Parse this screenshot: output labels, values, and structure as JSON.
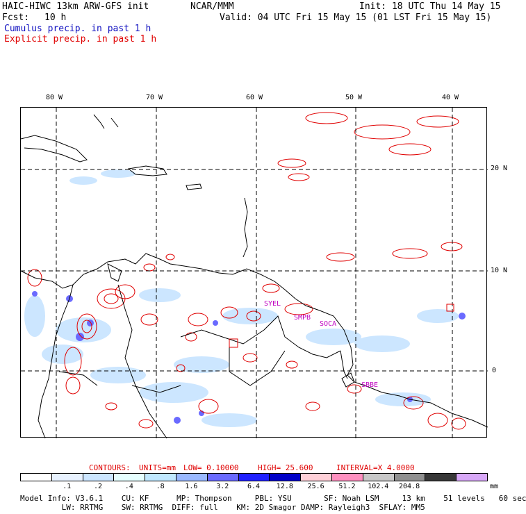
{
  "header": {
    "title": "HAIC-HIWC 13km ARW-GFS init",
    "org": "NCAR/MMM",
    "init": "Init: 18 UTC Thu 14 May 15",
    "fcst_label": "Fcst:",
    "fcst_value": "10 h",
    "valid": "Valid: 04 UTC Fri 15 May 15 (01 LST Fri 15 May 15)",
    "cumulus": "Cumulus precip. in past 1 h",
    "explicit": "Explicit precip. in past 1 h"
  },
  "map": {
    "lon_labels": [
      "80 W",
      "70 W",
      "60 W",
      "50 W",
      "40 W"
    ],
    "lat_labels": [
      "20 N",
      "10 N",
      "0"
    ],
    "stations": [
      "SYEL",
      "SMPB",
      "SOCA",
      "SBBE"
    ],
    "colors": {
      "coast": "#000000",
      "grid": "#000000",
      "contour": "#e00000",
      "station": "#c000c0"
    }
  },
  "contours": {
    "label": "CONTOURS:",
    "units": "UNITS=mm",
    "low": "LOW= 0.10000",
    "high": "HIGH= 25.600",
    "interval": "INTERVAL=X 4.0000"
  },
  "colorbar": {
    "unit": "mm",
    "ticks": [
      ".1",
      ".2",
      ".4",
      ".8",
      "1.6",
      "3.2",
      "6.4",
      "12.8",
      "25.6",
      "51.2",
      "102.4",
      "204.8"
    ],
    "colors": [
      "#ffffff",
      "#e8f2ff",
      "#cce6ff",
      "#e6ffff",
      "#c0e8ff",
      "#99b8ff",
      "#6a6aff",
      "#2020ff",
      "#0000c8",
      "#ffd0d8",
      "#ff90c0",
      "#c8c8c8",
      "#909090",
      "#383838",
      "#d8a8f8"
    ]
  },
  "footer": {
    "line1": "Model Info: V3.6.1    CU: KF      MP: Thompson     PBL: YSU       SF: Noah LSM     13 km    51 levels   60 sec",
    "line2": "         LW: RRTMG    SW: RRTMG  DIFF: full    KM: 2D Smagor DAMP: Rayleigh3  SFLAY: MM5"
  }
}
